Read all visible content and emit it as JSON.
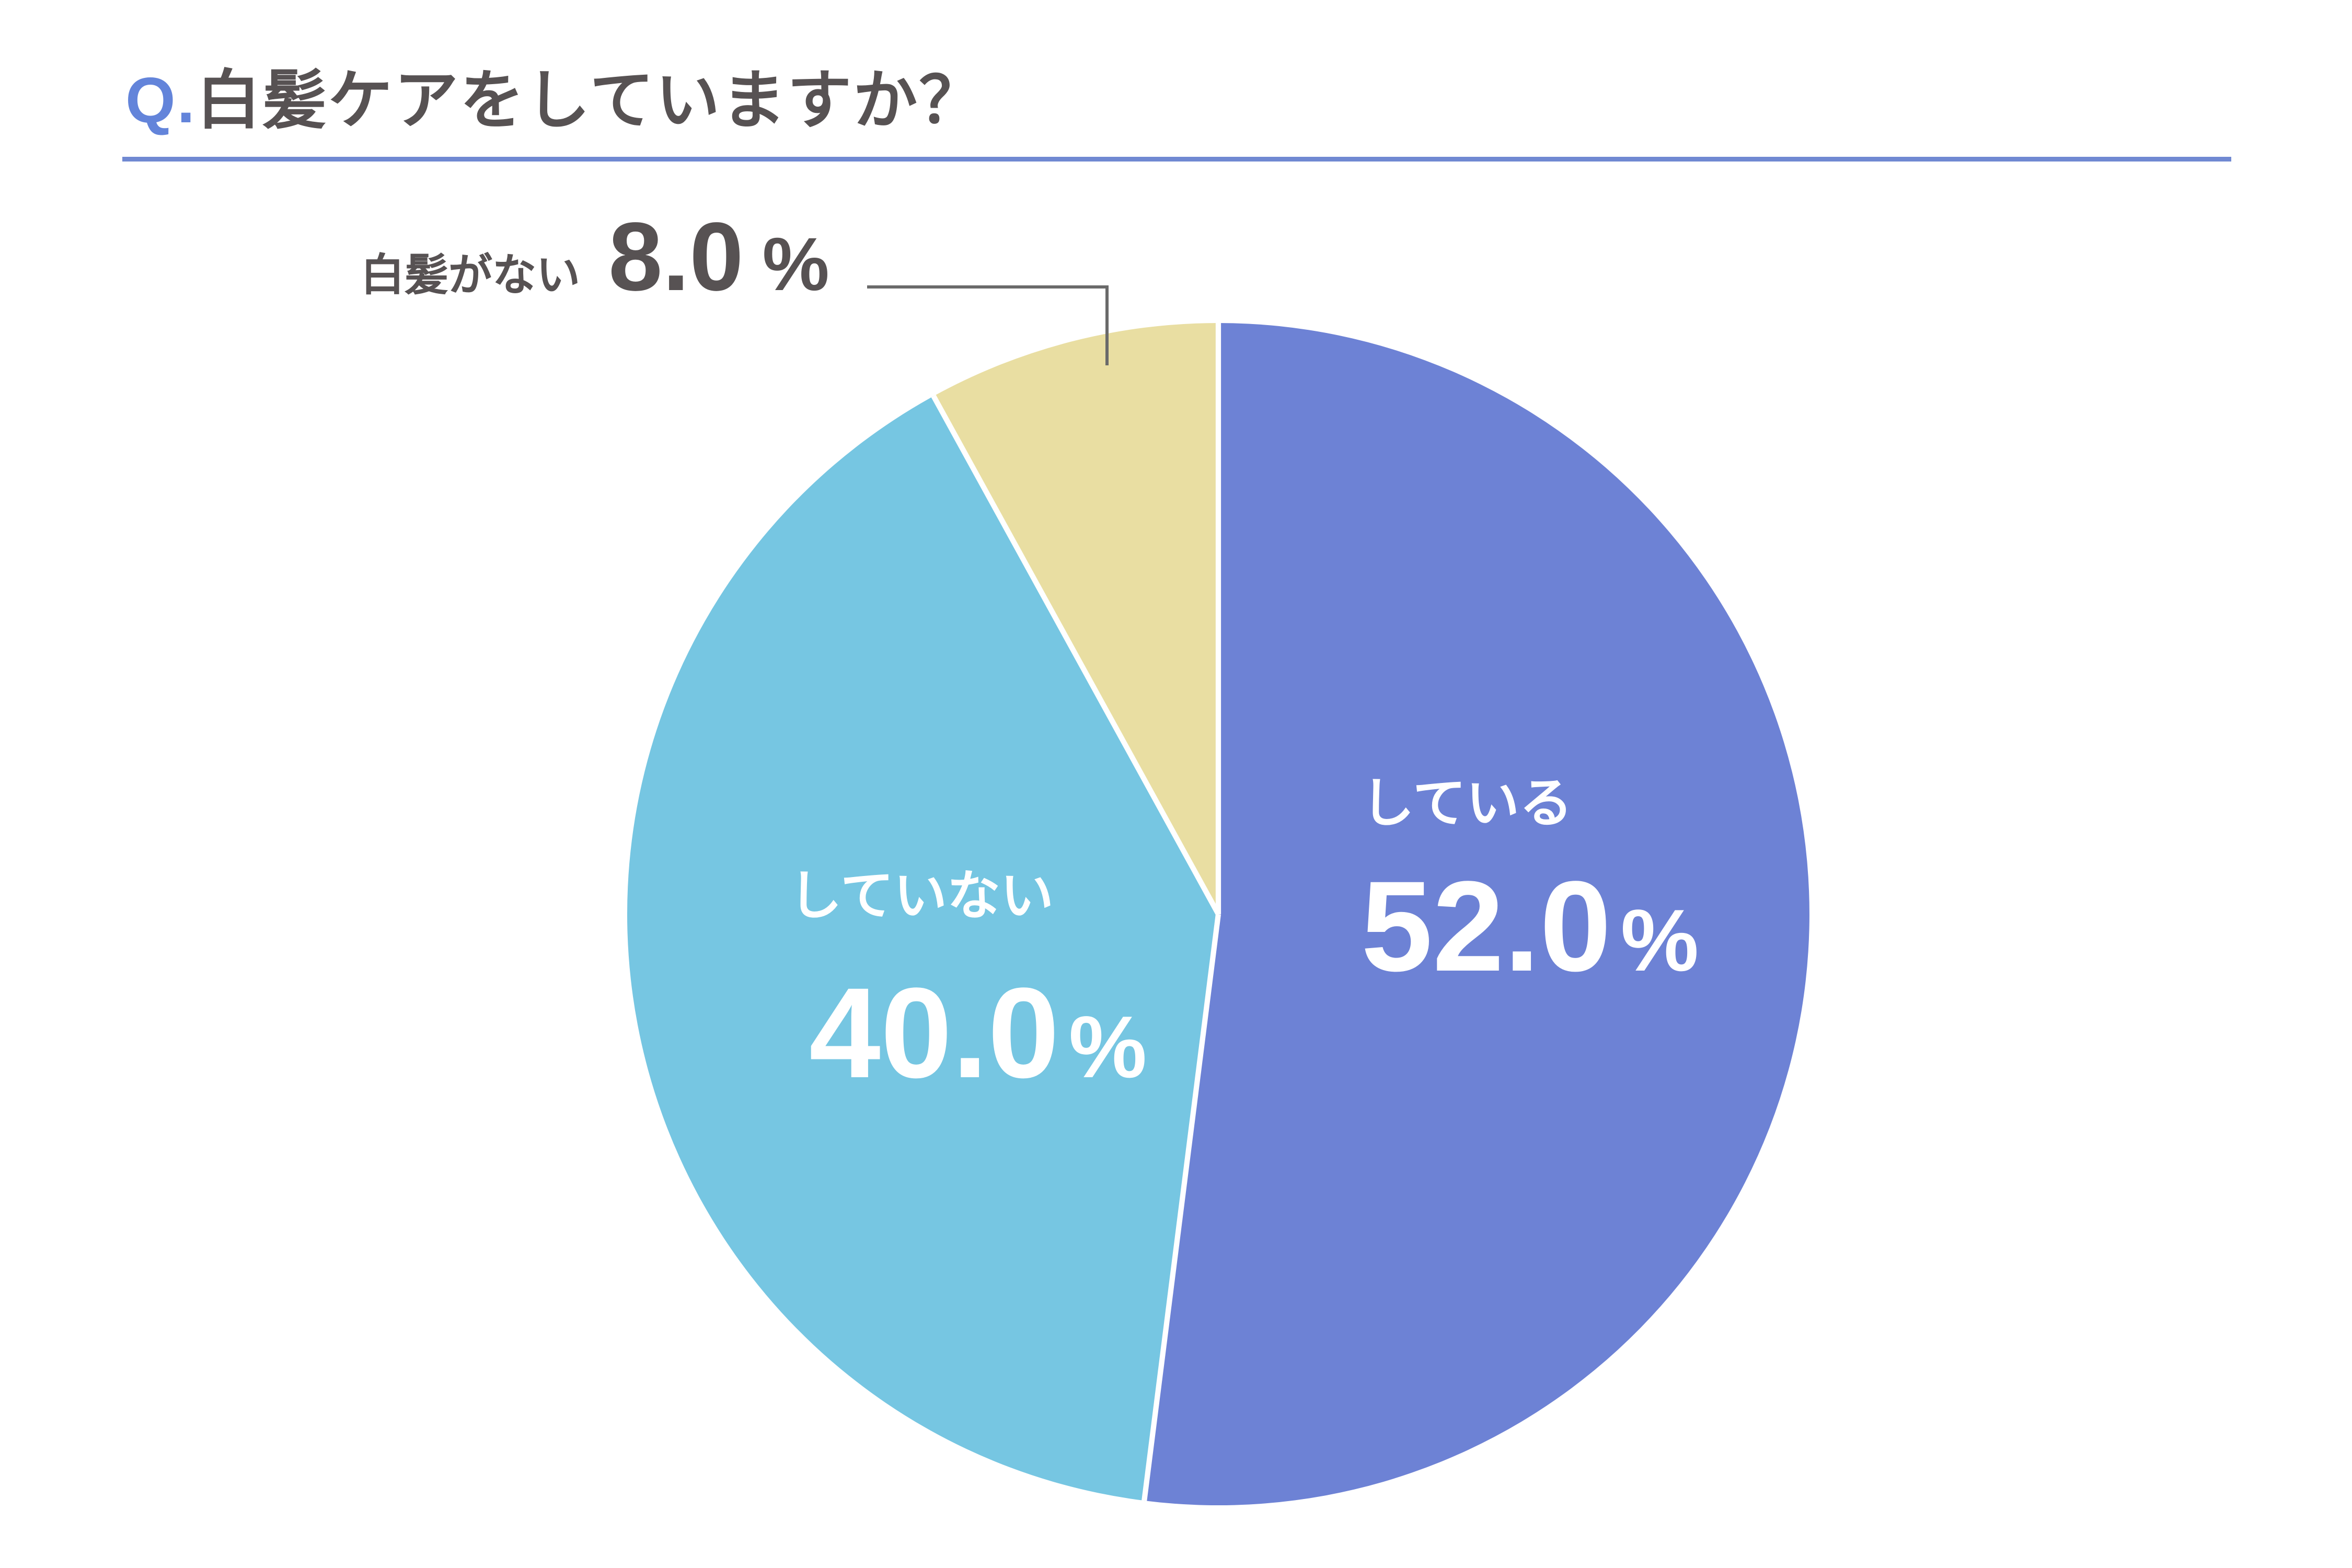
{
  "header": {
    "title_prefix": "Q.",
    "title_text": "白髪ケアをしていますか？",
    "accent_color": "#6384DA",
    "rule_color": "#7089D2",
    "text_color": "#575253"
  },
  "chart_data": {
    "type": "pie",
    "title": "Q.白髪ケアをしていますか？",
    "categories": [
      "している",
      "していない",
      "白髪がない"
    ],
    "values": [
      52.0,
      40.0,
      8.0
    ],
    "unit": "%",
    "colors": [
      "#6D82D5",
      "#76C6E2",
      "#E9DEA2"
    ],
    "start_angle_deg": 0,
    "direction": "clockwise",
    "slice_gap_color": "#FFFFFF",
    "legend_position": "none",
    "labels": [
      {
        "name": "している",
        "value_text": "52.0",
        "pct_symbol": "%",
        "placement": "inside",
        "text_color": "#FFFFFF"
      },
      {
        "name": "していない",
        "value_text": "40.0",
        "pct_symbol": "%",
        "placement": "inside",
        "text_color": "#FFFFFF"
      },
      {
        "name": "白髪がない",
        "value_text": "8.0",
        "pct_symbol": "%",
        "placement": "outside-callout",
        "text_color": "#575253",
        "callout_color": "#6A6A6A"
      }
    ]
  }
}
